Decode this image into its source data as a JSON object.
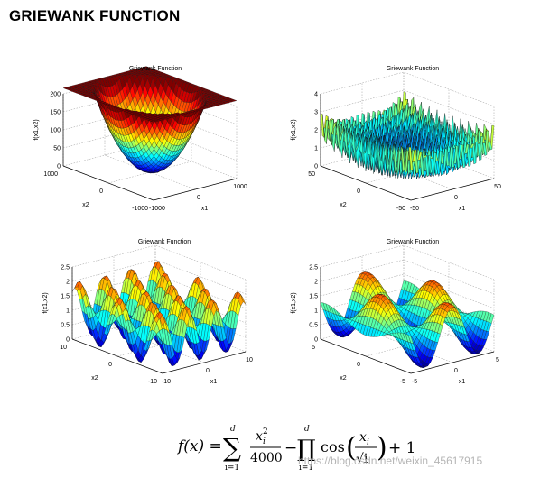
{
  "page": {
    "title": "GRIEWANK FUNCTION"
  },
  "chart_data": [
    {
      "type": "surface3d",
      "title": "Griewank Function",
      "xlabel": "x1",
      "ylabel": "x2",
      "zlabel": "f(x1,x2)",
      "xlim": [
        -1000,
        1000
      ],
      "ylim": [
        -1000,
        1000
      ],
      "zlim": [
        0,
        200
      ],
      "xticks": [
        "-1000",
        "0",
        "1000"
      ],
      "yticks": [
        "-1000",
        "0",
        "1000"
      ],
      "zticks": [
        "0",
        "50",
        "100",
        "150",
        "200"
      ]
    },
    {
      "type": "surface3d",
      "title": "Griewank Function",
      "xlabel": "x1",
      "ylabel": "x2",
      "zlabel": "f(x1,x2)",
      "xlim": [
        -50,
        50
      ],
      "ylim": [
        -50,
        50
      ],
      "zlim": [
        0,
        4
      ],
      "xticks": [
        "-50",
        "0",
        "50"
      ],
      "yticks": [
        "-50",
        "0",
        "50"
      ],
      "zticks": [
        "0",
        "1",
        "2",
        "3",
        "4"
      ]
    },
    {
      "type": "surface3d",
      "title": "Griewank Function",
      "xlabel": "x1",
      "ylabel": "x2",
      "zlabel": "f(x1,x2)",
      "xlim": [
        -10,
        10
      ],
      "ylim": [
        -10,
        10
      ],
      "zlim": [
        0,
        2.5
      ],
      "xticks": [
        "-10",
        "0",
        "10"
      ],
      "yticks": [
        "-10",
        "0",
        "10"
      ],
      "zticks": [
        "0",
        "0.5",
        "1",
        "1.5",
        "2",
        "2.5"
      ]
    },
    {
      "type": "surface3d",
      "title": "Griewank Function",
      "xlabel": "x1",
      "ylabel": "x2",
      "zlabel": "f(x1,x2)",
      "xlim": [
        -5,
        5
      ],
      "ylim": [
        -5,
        5
      ],
      "zlim": [
        0,
        2.5
      ],
      "xticks": [
        "-5",
        "0",
        "5"
      ],
      "yticks": [
        "-5",
        "0",
        "5"
      ],
      "zticks": [
        "0",
        "0.5",
        "1",
        "1.5",
        "2",
        "2.5"
      ]
    }
  ],
  "formula": {
    "lhs": "f(x) =",
    "sum_symbol": "∑",
    "sum_upper": "d",
    "sum_lower": "i=1",
    "frac_numerator": "x",
    "frac_numerator_sup": "2",
    "frac_numerator_sub": "i",
    "frac_denominator": "4000",
    "minus": "−",
    "prod_symbol": "∏",
    "prod_upper": "d",
    "prod_lower": "i=1",
    "cos": "cos",
    "cos_numerator": "x",
    "cos_numerator_sub": "i",
    "cos_denominator": "√i",
    "plus_one": "+ 1"
  },
  "watermark": "https://blog.csdn.net/weixin_45617915"
}
